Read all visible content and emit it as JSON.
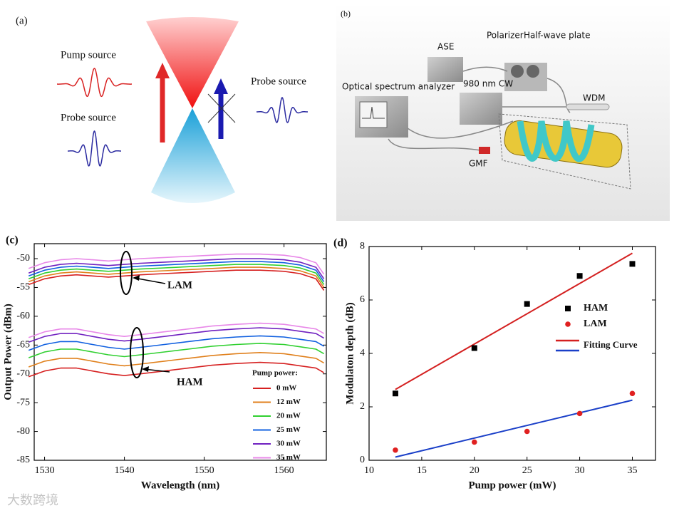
{
  "panel_a": {
    "label": "(a)",
    "pump_source": "Pump source",
    "probe_source_left": "Probe source",
    "probe_source_right": "Probe source"
  },
  "panel_b": {
    "label": "(b)",
    "labels": [
      "ASE",
      "Polarizer",
      "Half-wave plate",
      "Optical spectrum analyzer",
      "980 nm CW",
      "WDM",
      "GMF"
    ]
  },
  "chart_data": [
    {
      "type": "line",
      "panel_label": "(c)",
      "xlabel": "Wavelength (nm)",
      "ylabel": "Output Power (dBm)",
      "x": [
        1528,
        1530,
        1532,
        1534,
        1536,
        1538,
        1540,
        1542,
        1545,
        1548,
        1551,
        1554,
        1557,
        1560,
        1562,
        1564,
        1565
      ],
      "xlim": [
        1528.7,
        1565.3
      ],
      "xticks": [
        1530,
        1540,
        1550,
        1560
      ],
      "ylim": [
        -85,
        -47.4
      ],
      "yticks": [
        -85,
        -80,
        -75,
        -70,
        -65,
        -60,
        -55,
        -50
      ],
      "legend_title": "Pump power:",
      "legend": "lower right",
      "annotations": [
        "LAM",
        "HAM"
      ],
      "series": [
        {
          "name": "0 mW",
          "color": "#d62020",
          "lam": [
            -54.5,
            -53.5,
            -53,
            -52.8,
            -53,
            -53.2,
            -53,
            -52.8,
            -52.6,
            -52.4,
            -52.2,
            -52,
            -52,
            -52.2,
            -52.6,
            -53.5,
            -55.5
          ],
          "ham": [
            -70.5,
            -69.5,
            -69,
            -69,
            -69.5,
            -70,
            -70.3,
            -70,
            -69.5,
            -69,
            -68.5,
            -68.2,
            -68,
            -68.2,
            -68.6,
            -69,
            -69.8
          ]
        },
        {
          "name": "12 mW",
          "color": "#e0801c",
          "lam": [
            -54,
            -53,
            -52.5,
            -52.3,
            -52.5,
            -52.7,
            -52.5,
            -52.3,
            -52.1,
            -51.9,
            -51.7,
            -51.5,
            -51.5,
            -51.7,
            -52.1,
            -53,
            -55
          ],
          "ham": [
            -68.8,
            -67.8,
            -67.3,
            -67.3,
            -67.8,
            -68.3,
            -68.6,
            -68.3,
            -67.8,
            -67.3,
            -66.8,
            -66.5,
            -66.3,
            -66.5,
            -66.9,
            -67.3,
            -68.1
          ]
        },
        {
          "name": "20 mW",
          "color": "#30d030",
          "lam": [
            -53.5,
            -52.5,
            -52,
            -51.8,
            -52,
            -52.2,
            -52,
            -51.8,
            -51.6,
            -51.4,
            -51.2,
            -51,
            -51,
            -51.2,
            -51.6,
            -52.5,
            -54.5
          ],
          "ham": [
            -67.2,
            -66.2,
            -65.7,
            -65.7,
            -66.2,
            -66.7,
            -67,
            -66.7,
            -66.2,
            -65.7,
            -65.2,
            -64.9,
            -64.7,
            -64.9,
            -65.3,
            -65.7,
            -66.5
          ]
        },
        {
          "name": "25 mW",
          "color": "#1060e0",
          "lam": [
            -53,
            -52,
            -51.5,
            -51.3,
            -51.5,
            -51.7,
            -51.5,
            -51.3,
            -51.1,
            -50.9,
            -50.7,
            -50.5,
            -50.5,
            -50.7,
            -51.1,
            -52,
            -54
          ],
          "ham": [
            -65.9,
            -64.9,
            -64.4,
            -64.4,
            -64.9,
            -65.4,
            -65.7,
            -65.4,
            -64.9,
            -64.4,
            -63.9,
            -63.6,
            -63.4,
            -63.6,
            -64,
            -64.4,
            -65.2
          ]
        },
        {
          "name": "30 mW",
          "color": "#7020c0",
          "lam": [
            -52.5,
            -51.5,
            -51,
            -50.8,
            -51,
            -51.2,
            -51,
            -50.8,
            -50.6,
            -50.4,
            -50.2,
            -50,
            -50,
            -50.2,
            -50.6,
            -51.5,
            -53.5
          ],
          "ham": [
            -64.5,
            -63.5,
            -63,
            -63,
            -63.5,
            -64,
            -64.3,
            -64,
            -63.5,
            -63,
            -62.5,
            -62.2,
            -62,
            -62.2,
            -62.6,
            -63,
            -63.8
          ]
        },
        {
          "name": "35 mW",
          "color": "#e888e8",
          "lam": [
            -51.7,
            -50.7,
            -50.2,
            -50,
            -50.2,
            -50.4,
            -50.2,
            -50,
            -49.8,
            -49.6,
            -49.4,
            -49.2,
            -49.2,
            -49.4,
            -49.8,
            -50.7,
            -52.7
          ],
          "ham": [
            -63.7,
            -62.7,
            -62.2,
            -62.2,
            -62.7,
            -63.2,
            -63.5,
            -63.2,
            -62.7,
            -62.2,
            -61.7,
            -61.4,
            -61.2,
            -61.4,
            -61.8,
            -62.2,
            -63
          ]
        }
      ]
    },
    {
      "type": "scatter",
      "panel_label": "(d)",
      "xlabel": "Pump power (mW)",
      "ylabel": "Modulaton depth (dB)",
      "xlim": [
        10,
        37.2
      ],
      "xticks": [
        10,
        15,
        20,
        25,
        30,
        35
      ],
      "ylim": [
        0,
        8
      ],
      "yticks": [
        0,
        2,
        4,
        6,
        8
      ],
      "legend": "right",
      "series": [
        {
          "name": "HAM",
          "color": "#000000",
          "marker": "square",
          "x": [
            12.5,
            20,
            25,
            30,
            35
          ],
          "values": [
            2.5,
            4.2,
            5.85,
            6.9,
            7.35
          ]
        },
        {
          "name": "LAM",
          "color": "#e02020",
          "marker": "circle",
          "x": [
            12.5,
            20,
            25,
            30,
            35
          ],
          "values": [
            0.38,
            0.68,
            1.08,
            1.75,
            2.5
          ]
        }
      ],
      "fit": {
        "name": "Fitting Curve",
        "lines": [
          {
            "color": "#d42020",
            "x": [
              12.5,
              35
            ],
            "values": [
              2.65,
              7.75
            ]
          },
          {
            "color": "#1a3fc8",
            "x": [
              12.5,
              35
            ],
            "values": [
              0.12,
              2.25
            ]
          }
        ]
      }
    }
  ],
  "watermark": "大数跨境"
}
